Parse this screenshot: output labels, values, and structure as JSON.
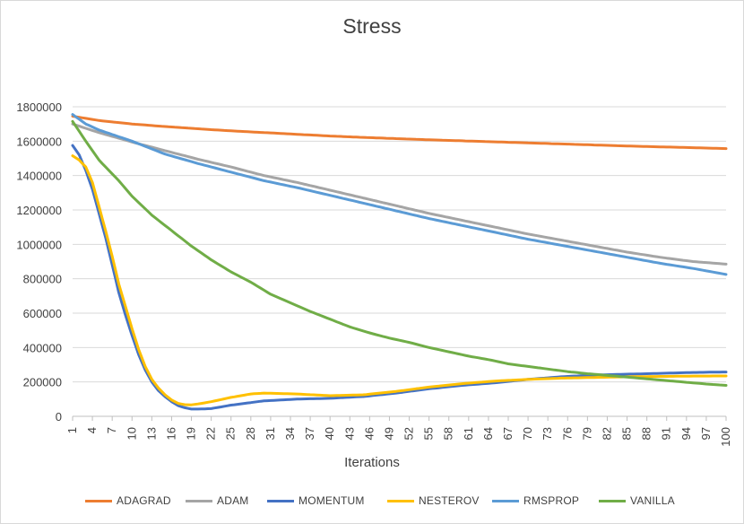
{
  "chart_data": {
    "type": "line",
    "title": "Stress",
    "xlabel": "Iterations",
    "ylabel": "",
    "ylim": [
      0,
      1800000
    ],
    "yticks": [
      0,
      200000,
      400000,
      600000,
      800000,
      1000000,
      1200000,
      1400000,
      1600000,
      1800000
    ],
    "xlim": [
      1,
      100
    ],
    "xtick_start": 1,
    "xtick_step": 3,
    "xtick_extra": [
      100
    ],
    "grid": "horizontal",
    "legend_position": "bottom",
    "series": [
      {
        "name": "ADAGRAD",
        "color": "#ED7D31",
        "points": [
          [
            1,
            1745000
          ],
          [
            5,
            1720000
          ],
          [
            10,
            1700000
          ],
          [
            15,
            1685000
          ],
          [
            20,
            1672000
          ],
          [
            25,
            1660000
          ],
          [
            30,
            1650000
          ],
          [
            35,
            1640000
          ],
          [
            40,
            1630000
          ],
          [
            45,
            1622000
          ],
          [
            50,
            1615000
          ],
          [
            55,
            1608000
          ],
          [
            60,
            1602000
          ],
          [
            65,
            1596000
          ],
          [
            70,
            1590000
          ],
          [
            75,
            1584000
          ],
          [
            80,
            1578000
          ],
          [
            85,
            1572000
          ],
          [
            90,
            1567000
          ],
          [
            95,
            1562000
          ],
          [
            100,
            1557000
          ]
        ]
      },
      {
        "name": "ADAM",
        "color": "#A5A5A5",
        "points": [
          [
            1,
            1700000
          ],
          [
            5,
            1650000
          ],
          [
            10,
            1595000
          ],
          [
            15,
            1545000
          ],
          [
            20,
            1495000
          ],
          [
            25,
            1450000
          ],
          [
            30,
            1400000
          ],
          [
            35,
            1360000
          ],
          [
            40,
            1315000
          ],
          [
            45,
            1270000
          ],
          [
            50,
            1225000
          ],
          [
            55,
            1180000
          ],
          [
            60,
            1140000
          ],
          [
            65,
            1100000
          ],
          [
            70,
            1060000
          ],
          [
            75,
            1025000
          ],
          [
            80,
            990000
          ],
          [
            85,
            955000
          ],
          [
            90,
            925000
          ],
          [
            95,
            900000
          ],
          [
            100,
            885000
          ]
        ]
      },
      {
        "name": "MOMENTUM",
        "color": "#4472C4",
        "points": [
          [
            1,
            1575000
          ],
          [
            2,
            1520000
          ],
          [
            3,
            1430000
          ],
          [
            4,
            1320000
          ],
          [
            5,
            1180000
          ],
          [
            6,
            1040000
          ],
          [
            7,
            880000
          ],
          [
            8,
            720000
          ],
          [
            9,
            590000
          ],
          [
            10,
            470000
          ],
          [
            11,
            360000
          ],
          [
            12,
            270000
          ],
          [
            13,
            200000
          ],
          [
            14,
            150000
          ],
          [
            15,
            115000
          ],
          [
            16,
            85000
          ],
          [
            17,
            62000
          ],
          [
            18,
            50000
          ],
          [
            19,
            42000
          ],
          [
            20,
            42000
          ],
          [
            22,
            45000
          ],
          [
            25,
            65000
          ],
          [
            30,
            90000
          ],
          [
            35,
            100000
          ],
          [
            40,
            105000
          ],
          [
            45,
            115000
          ],
          [
            50,
            135000
          ],
          [
            55,
            160000
          ],
          [
            60,
            180000
          ],
          [
            65,
            195000
          ],
          [
            70,
            215000
          ],
          [
            75,
            230000
          ],
          [
            80,
            240000
          ],
          [
            85,
            245000
          ],
          [
            90,
            250000
          ],
          [
            95,
            255000
          ],
          [
            100,
            258000
          ]
        ]
      },
      {
        "name": "NESTEROV",
        "color": "#FFC000",
        "points": [
          [
            1,
            1515000
          ],
          [
            2,
            1490000
          ],
          [
            3,
            1450000
          ],
          [
            4,
            1360000
          ],
          [
            5,
            1220000
          ],
          [
            6,
            1080000
          ],
          [
            7,
            930000
          ],
          [
            8,
            770000
          ],
          [
            9,
            640000
          ],
          [
            10,
            510000
          ],
          [
            11,
            390000
          ],
          [
            12,
            290000
          ],
          [
            13,
            215000
          ],
          [
            14,
            165000
          ],
          [
            15,
            125000
          ],
          [
            16,
            95000
          ],
          [
            17,
            75000
          ],
          [
            18,
            68000
          ],
          [
            19,
            67000
          ],
          [
            20,
            72000
          ],
          [
            22,
            85000
          ],
          [
            25,
            110000
          ],
          [
            28,
            130000
          ],
          [
            30,
            135000
          ],
          [
            35,
            130000
          ],
          [
            40,
            120000
          ],
          [
            45,
            125000
          ],
          [
            50,
            145000
          ],
          [
            55,
            170000
          ],
          [
            60,
            190000
          ],
          [
            65,
            205000
          ],
          [
            70,
            215000
          ],
          [
            75,
            222000
          ],
          [
            80,
            226000
          ],
          [
            85,
            230000
          ],
          [
            90,
            232000
          ],
          [
            95,
            234000
          ],
          [
            100,
            235000
          ]
        ]
      },
      {
        "name": "RMSPROP",
        "color": "#5B9BD5",
        "points": [
          [
            1,
            1755000
          ],
          [
            3,
            1700000
          ],
          [
            5,
            1665000
          ],
          [
            10,
            1600000
          ],
          [
            15,
            1525000
          ],
          [
            20,
            1470000
          ],
          [
            25,
            1420000
          ],
          [
            30,
            1370000
          ],
          [
            35,
            1330000
          ],
          [
            40,
            1285000
          ],
          [
            45,
            1240000
          ],
          [
            50,
            1195000
          ],
          [
            55,
            1150000
          ],
          [
            60,
            1110000
          ],
          [
            65,
            1070000
          ],
          [
            70,
            1030000
          ],
          [
            75,
            995000
          ],
          [
            80,
            960000
          ],
          [
            85,
            925000
          ],
          [
            90,
            890000
          ],
          [
            95,
            860000
          ],
          [
            100,
            825000
          ]
        ]
      },
      {
        "name": "VANILLA",
        "color": "#70AD47",
        "points": [
          [
            1,
            1715000
          ],
          [
            3,
            1600000
          ],
          [
            5,
            1490000
          ],
          [
            8,
            1370000
          ],
          [
            10,
            1280000
          ],
          [
            13,
            1170000
          ],
          [
            16,
            1080000
          ],
          [
            19,
            990000
          ],
          [
            22,
            910000
          ],
          [
            25,
            840000
          ],
          [
            28,
            780000
          ],
          [
            31,
            710000
          ],
          [
            34,
            660000
          ],
          [
            37,
            610000
          ],
          [
            40,
            565000
          ],
          [
            43,
            520000
          ],
          [
            46,
            485000
          ],
          [
            49,
            455000
          ],
          [
            52,
            430000
          ],
          [
            55,
            400000
          ],
          [
            58,
            375000
          ],
          [
            61,
            350000
          ],
          [
            64,
            330000
          ],
          [
            67,
            305000
          ],
          [
            70,
            290000
          ],
          [
            73,
            275000
          ],
          [
            76,
            260000
          ],
          [
            79,
            248000
          ],
          [
            82,
            238000
          ],
          [
            85,
            228000
          ],
          [
            88,
            218000
          ],
          [
            91,
            208000
          ],
          [
            94,
            198000
          ],
          [
            97,
            188000
          ],
          [
            100,
            180000
          ]
        ]
      }
    ]
  }
}
